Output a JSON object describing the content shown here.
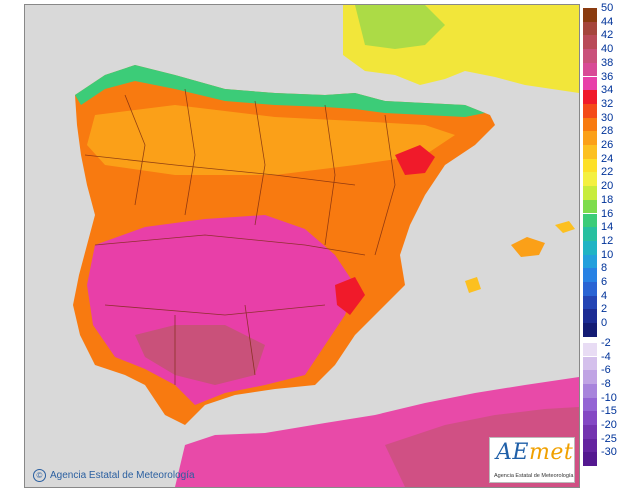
{
  "map": {
    "title": "",
    "credit": "Agencia Estatal de Meteorología",
    "logo_text_main": "AEmet",
    "logo_text_sub": "Agencia Estatal de Meteorología"
  },
  "legend": {
    "unit": "",
    "positive": [
      {
        "label": "50",
        "color": "#8a3b10"
      },
      {
        "label": "44",
        "color": "#a5453c"
      },
      {
        "label": "42",
        "color": "#b94a58"
      },
      {
        "label": "40",
        "color": "#c9517a"
      },
      {
        "label": "38",
        "color": "#d84a96"
      },
      {
        "label": "36",
        "color": "#e83fa8"
      },
      {
        "label": "34",
        "color": "#f01a2a"
      },
      {
        "label": "32",
        "color": "#f44a18"
      },
      {
        "label": "30",
        "color": "#f87a10"
      },
      {
        "label": "28",
        "color": "#fba018"
      },
      {
        "label": "26",
        "color": "#fcc020"
      },
      {
        "label": "24",
        "color": "#fde028"
      },
      {
        "label": "22",
        "color": "#f4f040"
      },
      {
        "label": "20",
        "color": "#c8ec3c"
      },
      {
        "label": "18",
        "color": "#7edc4c"
      },
      {
        "label": "16",
        "color": "#3ccc78"
      },
      {
        "label": "14",
        "color": "#28c0a0"
      },
      {
        "label": "12",
        "color": "#20b4c4"
      },
      {
        "label": "10",
        "color": "#24a0dc"
      },
      {
        "label": "8",
        "color": "#2882e4"
      },
      {
        "label": "6",
        "color": "#2a64d4"
      },
      {
        "label": "4",
        "color": "#2444b4"
      },
      {
        "label": "2",
        "color": "#1c2c94"
      },
      {
        "label": "0",
        "color": "#141c74"
      }
    ],
    "negative": [
      {
        "label": "-2",
        "color": "#e8dcf4"
      },
      {
        "label": "-4",
        "color": "#d4c0ec"
      },
      {
        "label": "-6",
        "color": "#c0a4e4"
      },
      {
        "label": "-8",
        "color": "#a884dc"
      },
      {
        "label": "-10",
        "color": "#9464d4"
      },
      {
        "label": "-15",
        "color": "#8448c4"
      },
      {
        "label": "-20",
        "color": "#7434b0"
      },
      {
        "label": "-25",
        "color": "#6424a0"
      },
      {
        "label": "-30",
        "color": "#541890"
      }
    ]
  }
}
